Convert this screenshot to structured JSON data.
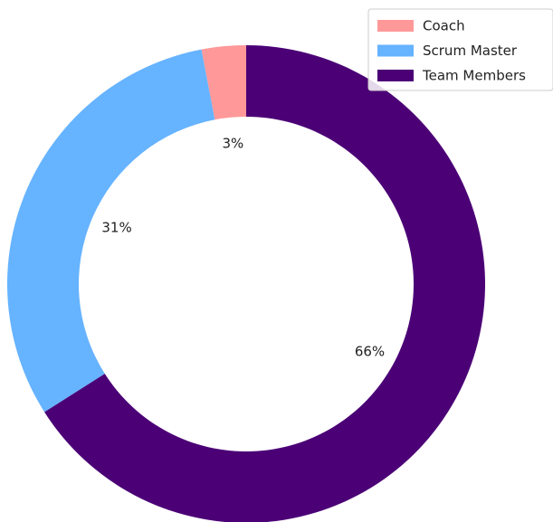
{
  "chart_data": {
    "type": "pie",
    "categories": [
      "Coach",
      "Scrum Master",
      "Team Members"
    ],
    "values": [
      3,
      31,
      66
    ],
    "value_labels": [
      "3%",
      "31%",
      "66%"
    ],
    "colors": [
      "#ff9999",
      "#66b3ff",
      "#4b0076"
    ],
    "donut": true,
    "legend": "upper right"
  }
}
